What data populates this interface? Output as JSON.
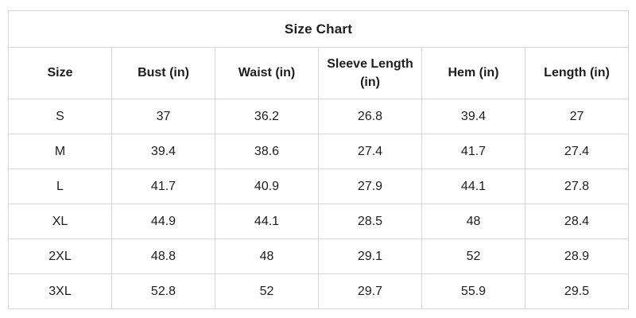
{
  "chart_data": {
    "type": "table",
    "title": "Size Chart",
    "columns": [
      "Size",
      "Bust (in)",
      "Waist (in)",
      "Sleeve Length (in)",
      "Hem (in)",
      "Length (in)"
    ],
    "rows": [
      [
        "S",
        "37",
        "36.2",
        "26.8",
        "39.4",
        "27"
      ],
      [
        "M",
        "39.4",
        "38.6",
        "27.4",
        "41.7",
        "27.4"
      ],
      [
        "L",
        "41.7",
        "40.9",
        "27.9",
        "44.1",
        "27.8"
      ],
      [
        "XL",
        "44.9",
        "44.1",
        "28.5",
        "48",
        "28.4"
      ],
      [
        "2XL",
        "48.8",
        "48",
        "29.1",
        "52",
        "28.9"
      ],
      [
        "3XL",
        "52.8",
        "52",
        "29.7",
        "55.9",
        "29.5"
      ]
    ],
    "layout": {
      "legend": "none",
      "grid": "full-borders"
    }
  },
  "colors": {
    "background": "#ffffff",
    "border": "#d6d6d6",
    "text": "#1d1d1d"
  }
}
